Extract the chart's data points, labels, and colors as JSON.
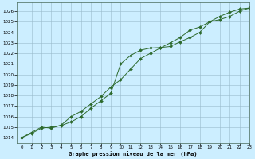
{
  "title": "Graphe pression niveau de la mer (hPa)",
  "bg_color": "#cceeff",
  "grid_color": "#99bbcc",
  "line_color": "#2d6a2d",
  "marker_color": "#2d6a2d",
  "xlim": [
    -0.5,
    23
  ],
  "ylim": [
    1013.5,
    1026.8
  ],
  "yticks": [
    1014,
    1015,
    1016,
    1017,
    1018,
    1019,
    1020,
    1021,
    1022,
    1023,
    1024,
    1025,
    1026
  ],
  "xticks": [
    0,
    1,
    2,
    3,
    4,
    5,
    6,
    7,
    8,
    9,
    10,
    11,
    12,
    13,
    14,
    15,
    16,
    17,
    18,
    19,
    20,
    21,
    22,
    23
  ],
  "line1_x": [
    0,
    1,
    2,
    3,
    4,
    5,
    6,
    7,
    8,
    9,
    10,
    11,
    12,
    13,
    14,
    15,
    16,
    17,
    18,
    19,
    20,
    21,
    22,
    23
  ],
  "line1_y": [
    1014.0,
    1014.4,
    1014.9,
    1015.0,
    1015.15,
    1015.5,
    1016.0,
    1016.8,
    1017.5,
    1018.2,
    1021.0,
    1021.8,
    1022.3,
    1022.5,
    1022.55,
    1022.65,
    1023.1,
    1023.5,
    1024.0,
    1025.0,
    1025.2,
    1025.5,
    1026.0,
    1026.3
  ],
  "line2_x": [
    0,
    1,
    2,
    3,
    4,
    5,
    6,
    7,
    8,
    9,
    10,
    11,
    12,
    13,
    14,
    15,
    16,
    17,
    18,
    19,
    20,
    21,
    22,
    23
  ],
  "line2_y": [
    1014.0,
    1014.5,
    1015.0,
    1014.9,
    1015.2,
    1016.0,
    1016.5,
    1017.2,
    1017.9,
    1018.8,
    1019.5,
    1020.5,
    1021.5,
    1022.0,
    1022.5,
    1023.0,
    1023.5,
    1024.2,
    1024.5,
    1025.0,
    1025.5,
    1025.9,
    1026.2,
    1026.3
  ]
}
